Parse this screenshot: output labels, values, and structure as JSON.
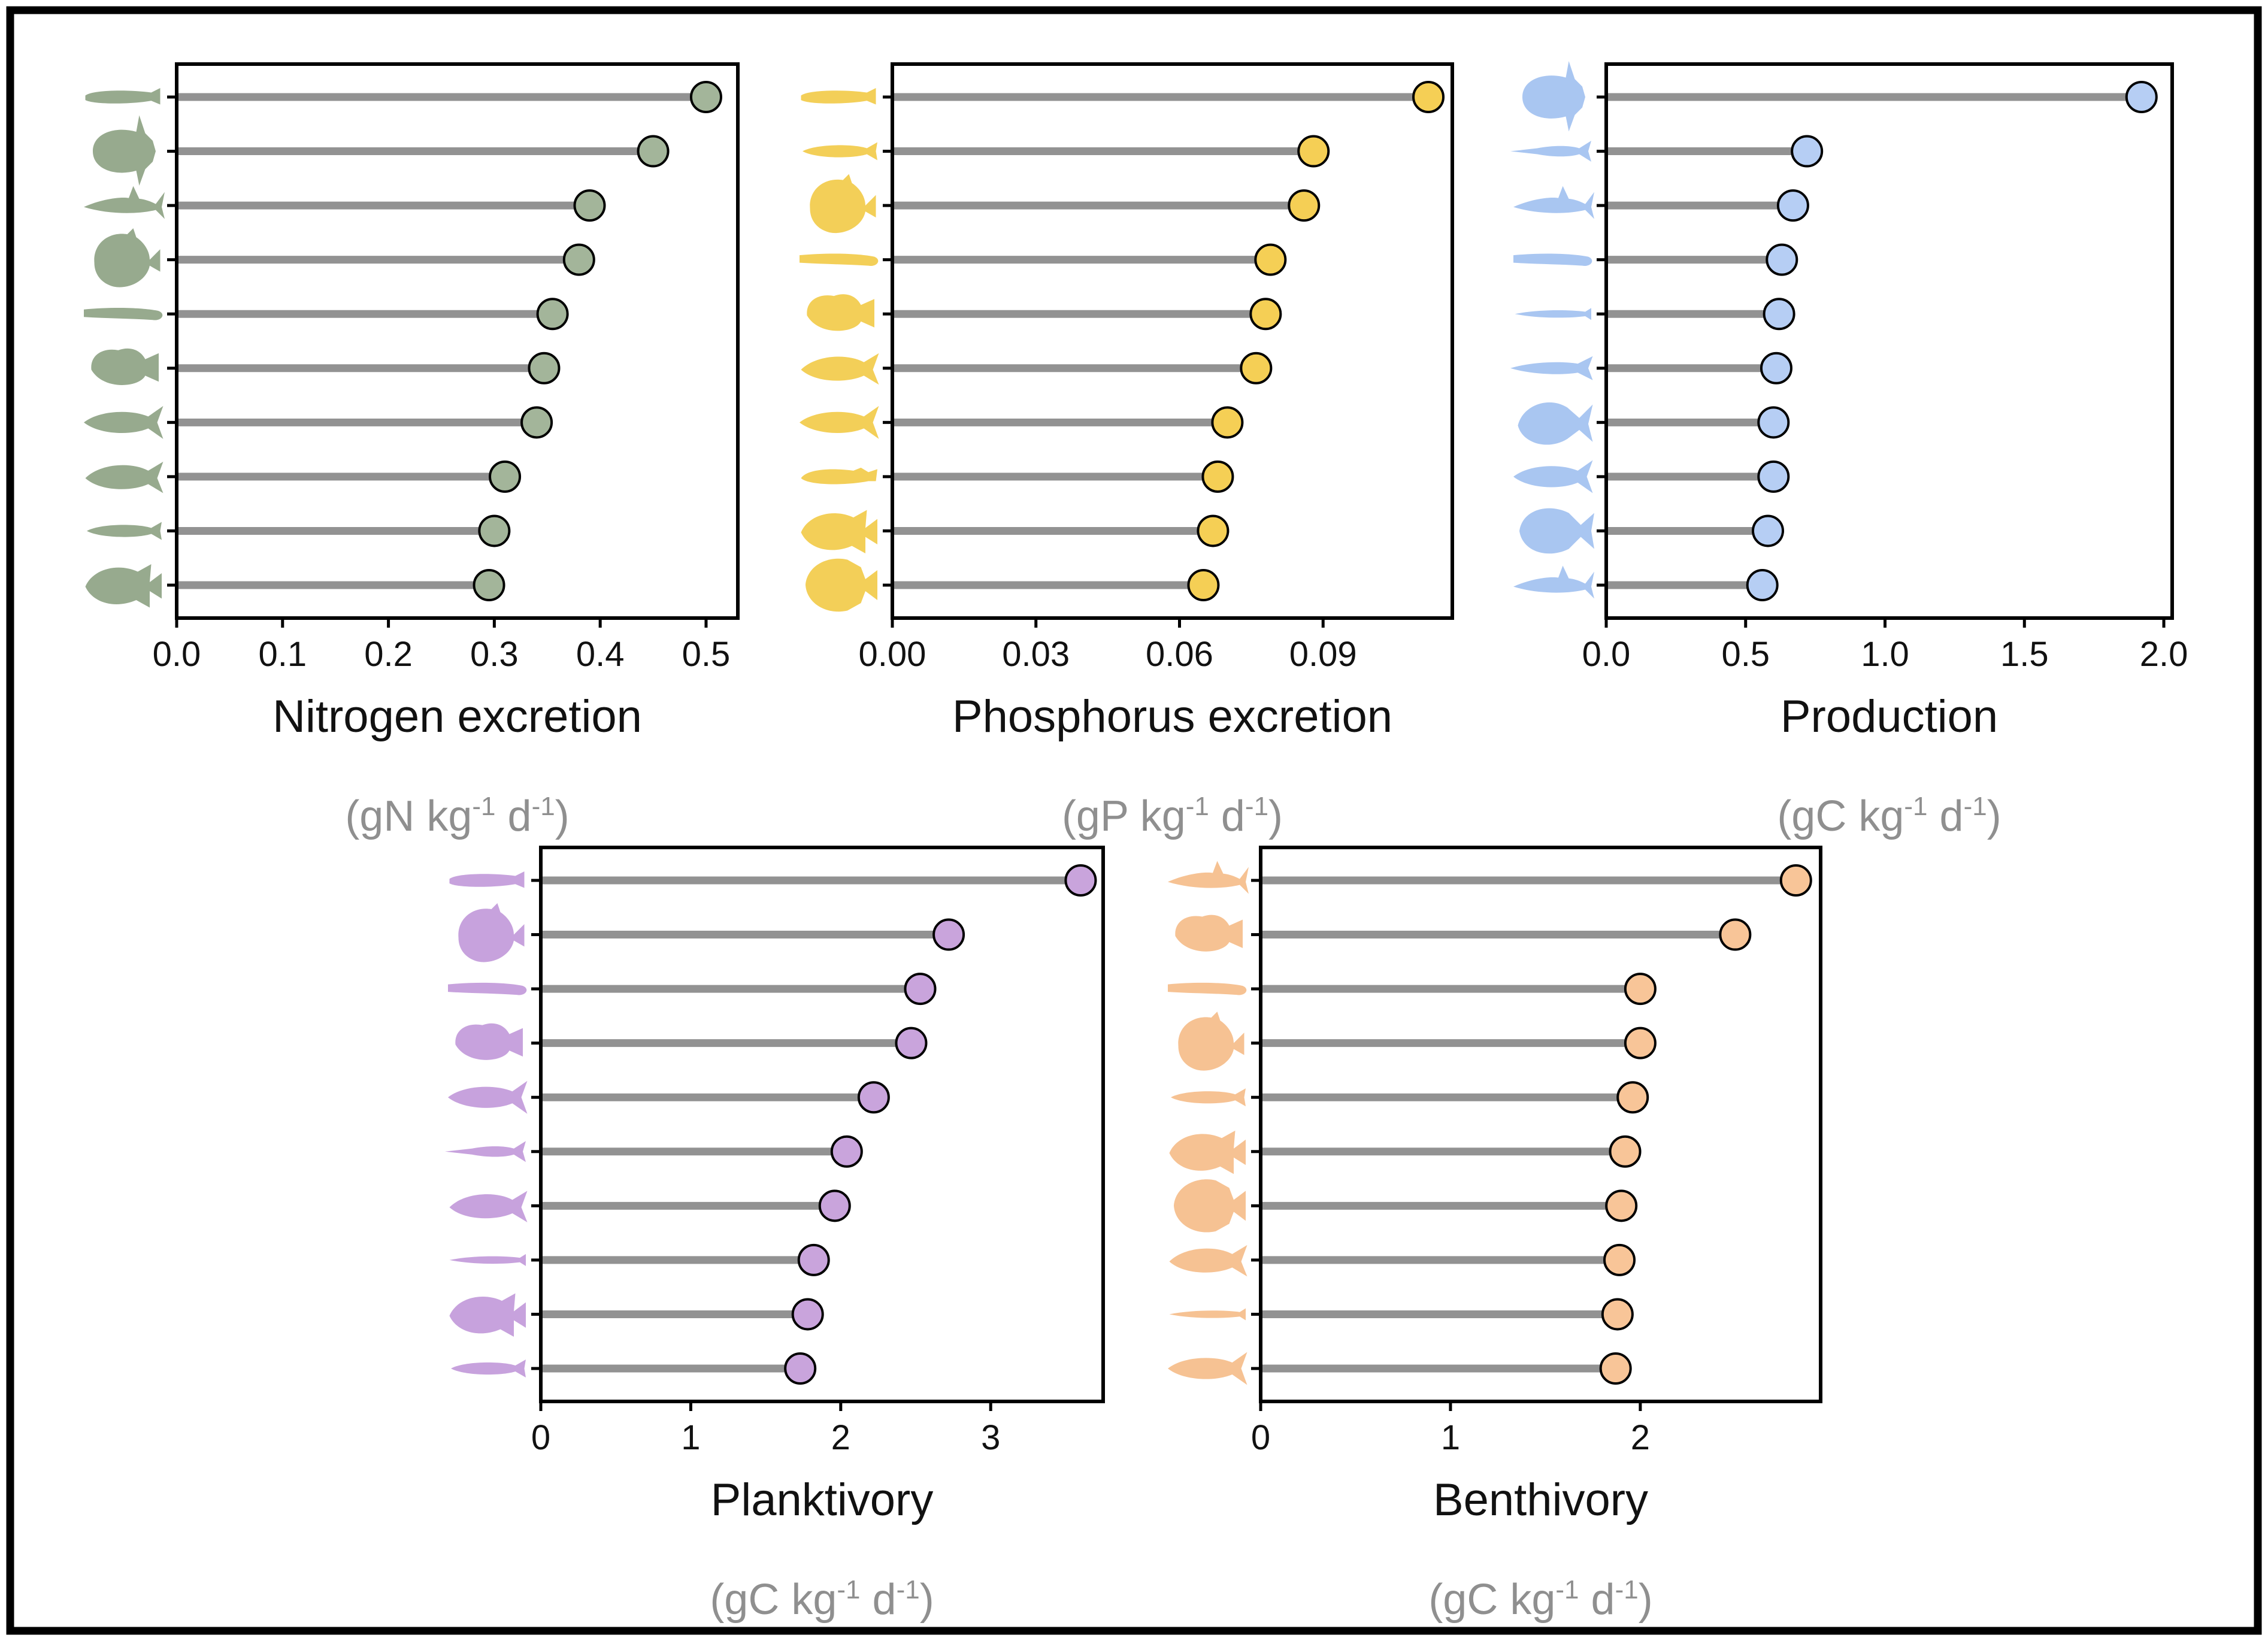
{
  "chart_data": [
    {
      "id": "nitrogen",
      "type": "lollipop",
      "xlabel": "Nitrogen excretion",
      "unit": {
        "pre": "(gN kg",
        "sup1": "-1",
        "mid": " d",
        "sup2": "-1",
        "post": ")"
      },
      "xlim": [
        0,
        0.53
      ],
      "ticks": [
        0.0,
        0.1,
        0.2,
        0.3,
        0.4,
        0.5
      ],
      "tick_labels": [
        "0.0",
        "0.1",
        "0.2",
        "0.3",
        "0.4",
        "0.5"
      ],
      "values": [
        0.5,
        0.45,
        0.39,
        0.38,
        0.355,
        0.347,
        0.34,
        0.31,
        0.3,
        0.295
      ],
      "color": "#a3b59a",
      "icon_color": "#97aa8e",
      "icons": [
        "catfish-icon",
        "sunfish-icon",
        "shark-icon",
        "frogfish-icon",
        "eel-icon",
        "goby-icon",
        "mackerel-icon",
        "herring-icon",
        "lizardfish-icon",
        "grouper-icon"
      ]
    },
    {
      "id": "phosphorus",
      "type": "lollipop",
      "xlabel": "Phosphorus excretion",
      "unit": {
        "pre": "(gP kg",
        "sup1": "-1",
        "mid": " d",
        "sup2": "-1",
        "post": ")"
      },
      "xlim": [
        0,
        0.117
      ],
      "ticks": [
        0.0,
        0.03,
        0.06,
        0.09
      ],
      "tick_labels": [
        "0.00",
        "0.03",
        "0.06",
        "0.09"
      ],
      "values": [
        0.112,
        0.088,
        0.086,
        0.079,
        0.078,
        0.076,
        0.07,
        0.068,
        0.067,
        0.065
      ],
      "color": "#f5cf55",
      "icon_color": "#f3cf58",
      "icons": [
        "catfish-icon",
        "lizardfish-icon",
        "frogfish-icon",
        "eel-icon",
        "goby-icon",
        "herring-icon",
        "mackerel-icon",
        "blenny-icon",
        "grouper-icon",
        "scorpionfish-icon"
      ]
    },
    {
      "id": "production",
      "type": "lollipop",
      "xlabel": "Production",
      "unit": {
        "pre": "(gC kg",
        "sup1": "-1",
        "mid": " d",
        "sup2": "-1",
        "post": ")"
      },
      "xlim": [
        0,
        2.03
      ],
      "ticks": [
        0.0,
        0.5,
        1.0,
        1.5,
        2.0
      ],
      "tick_labels": [
        "0.0",
        "0.5",
        "1.0",
        "1.5",
        "2.0"
      ],
      "values": [
        1.92,
        0.72,
        0.67,
        0.63,
        0.62,
        0.61,
        0.6,
        0.6,
        0.58,
        0.56
      ],
      "color": "#b6cef4",
      "icon_color": "#a9c6f1",
      "icons": [
        "sunfish-icon",
        "needlefish-icon",
        "shark-icon",
        "eel-icon",
        "pipefish-icon",
        "barracuda-icon",
        "trevally-icon",
        "mackerel-icon",
        "surgeonfish-icon",
        "shark-icon"
      ]
    },
    {
      "id": "planktivory",
      "type": "lollipop",
      "xlabel": "Planktivory",
      "unit": {
        "pre": "(gC kg",
        "sup1": "-1",
        "mid": " d",
        "sup2": "-1",
        "post": ")"
      },
      "xlim": [
        0,
        3.75
      ],
      "ticks": [
        0,
        1,
        2,
        3
      ],
      "tick_labels": [
        "0",
        "1",
        "2",
        "3"
      ],
      "values": [
        3.6,
        2.72,
        2.53,
        2.47,
        2.22,
        2.04,
        1.96,
        1.82,
        1.78,
        1.73
      ],
      "color": "#c9a4dc",
      "icon_color": "#c7a2dd",
      "icons": [
        "catfish-icon",
        "frogfish-icon",
        "eel-icon",
        "goby-icon",
        "mackerel-icon",
        "needlefish-icon",
        "herring-icon",
        "pipefish-icon",
        "grouper-icon",
        "lizardfish-icon"
      ]
    },
    {
      "id": "benthivory",
      "type": "lollipop",
      "xlabel": "Benthivory",
      "unit": {
        "pre": "(gC kg",
        "sup1": "-1",
        "mid": " d",
        "sup2": "-1",
        "post": ")"
      },
      "xlim": [
        0,
        2.95
      ],
      "ticks": [
        0,
        1,
        2
      ],
      "tick_labels": [
        "0",
        "1",
        "2"
      ],
      "values": [
        2.82,
        2.5,
        2.0,
        2.0,
        1.96,
        1.92,
        1.9,
        1.89,
        1.88,
        1.87
      ],
      "color": "#f8c598",
      "icon_color": "#f6c293",
      "icons": [
        "shark-icon",
        "goby-icon",
        "eel-icon",
        "frogfish-icon",
        "lizardfish-icon",
        "grouper-icon",
        "scorpionfish-icon",
        "herring-icon",
        "pipefish-icon",
        "mackerel-icon"
      ]
    }
  ]
}
